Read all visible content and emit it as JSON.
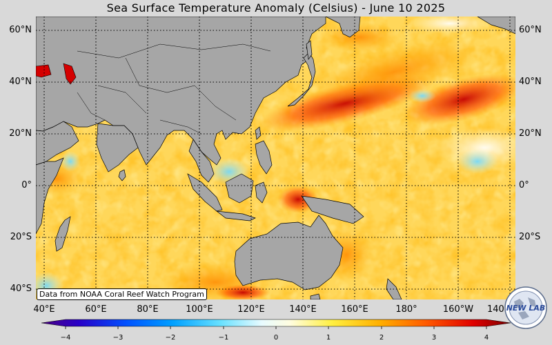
{
  "title": "Sea Surface Temperature Anomaly (Celsius) - June 10 2025",
  "credit": "Data from NOAA Coral Reef Watch Program",
  "logo_text": "NEW LAB",
  "latitude_labels": [
    "60°N",
    "40°N",
    "20°N",
    "0°",
    "20°S",
    "40°S"
  ],
  "longitude_labels": [
    "40°E",
    "60°E",
    "80°E",
    "100°E",
    "120°E",
    "140°E",
    "160°E",
    "180°",
    "160°W",
    "140°W"
  ],
  "colorbar": {
    "ticks": [
      "−4",
      "−3",
      "−2",
      "−1",
      "0",
      "1",
      "2",
      "3",
      "4"
    ],
    "min": -4,
    "max": 4
  },
  "colors": {
    "land": "#a6a6a6",
    "gridline": "#000000",
    "background": "#d9d9d9"
  }
}
